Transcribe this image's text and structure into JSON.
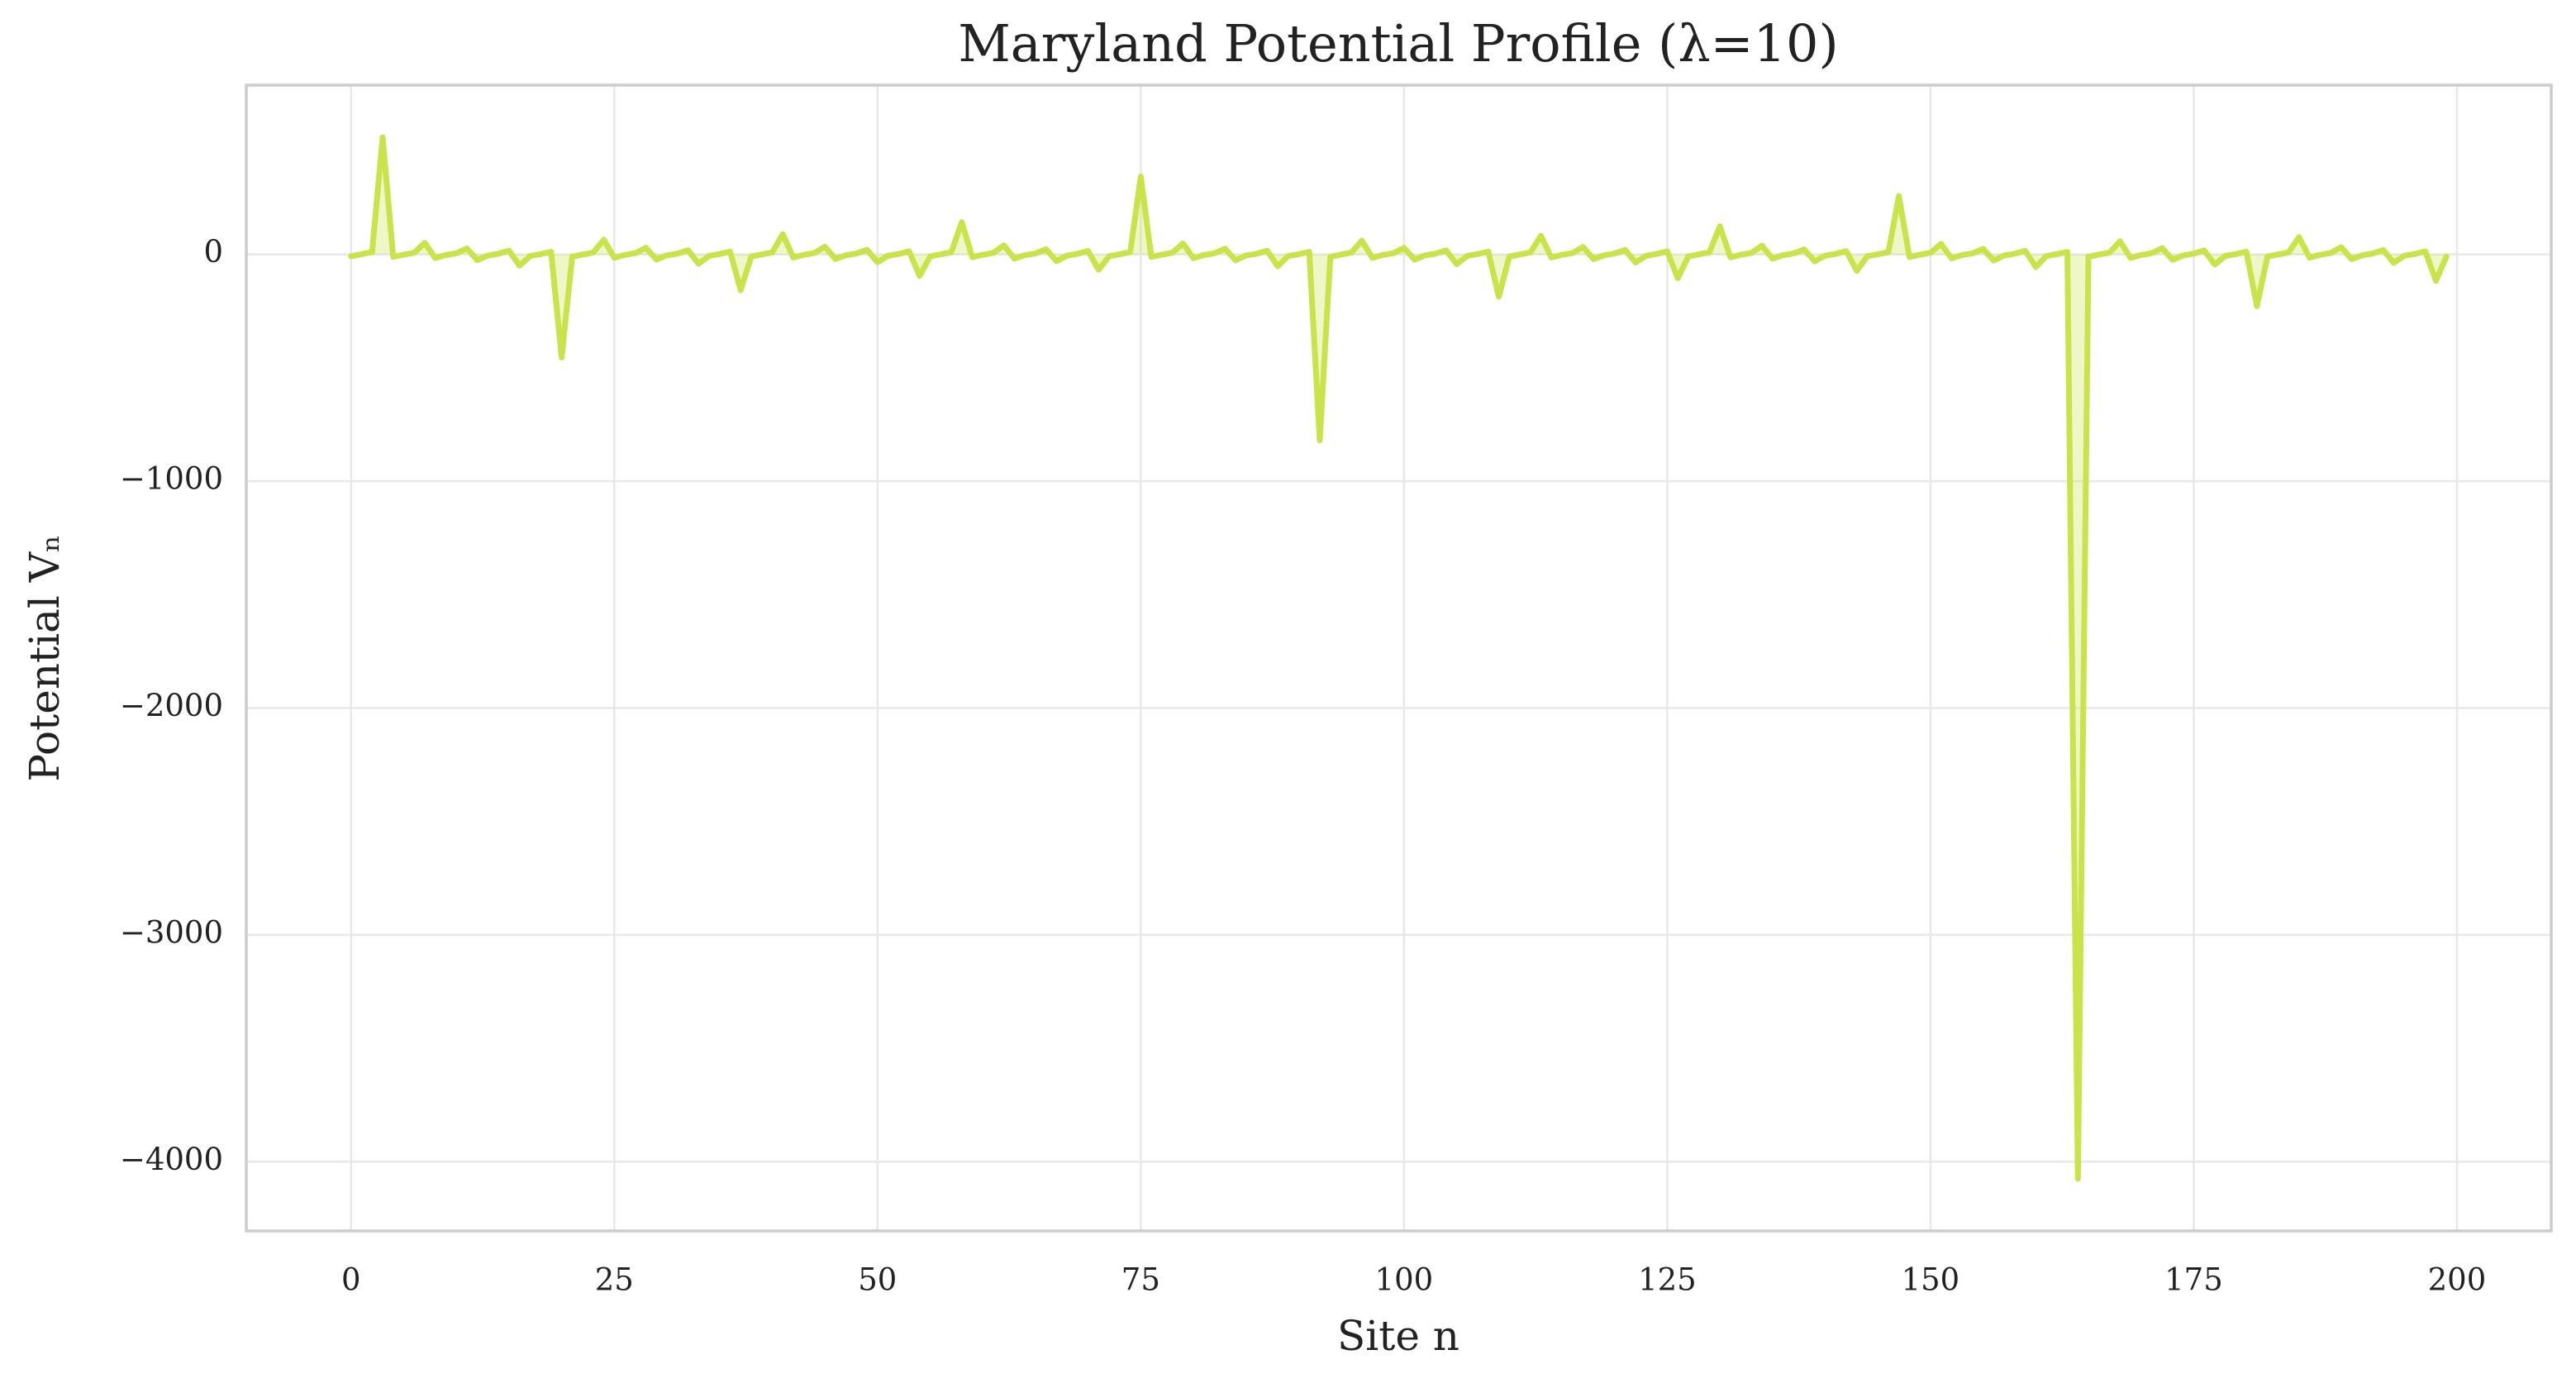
{
  "chart_data": {
    "type": "line",
    "title": "Maryland Potential Profile (λ=10)",
    "x_label": "Site n",
    "y_label": "Potential Vₙ",
    "x": [
      0,
      1,
      2,
      3,
      4,
      5,
      6,
      7,
      8,
      9,
      10,
      11,
      12,
      13,
      14,
      15,
      16,
      17,
      18,
      19,
      20,
      21,
      22,
      23,
      24,
      25,
      26,
      27,
      28,
      29,
      30,
      31,
      32,
      33,
      34,
      35,
      36,
      37,
      38,
      39,
      40,
      41,
      42,
      43,
      44,
      45,
      46,
      47,
      48,
      49,
      50,
      51,
      52,
      53,
      54,
      55,
      56,
      57,
      58,
      59,
      60,
      61,
      62,
      63,
      64,
      65,
      66,
      67,
      68,
      69,
      70,
      71,
      72,
      73,
      74,
      75,
      76,
      77,
      78,
      79,
      80,
      81,
      82,
      83,
      84,
      85,
      86,
      87,
      88,
      89,
      90,
      91,
      92,
      93,
      94,
      95,
      96,
      97,
      98,
      99,
      100,
      101,
      102,
      103,
      104,
      105,
      106,
      107,
      108,
      109,
      110,
      111,
      112,
      113,
      114,
      115,
      116,
      117,
      118,
      119,
      120,
      121,
      122,
      123,
      124,
      125,
      126,
      127,
      128,
      129,
      130,
      131,
      132,
      133,
      134,
      135,
      136,
      137,
      138,
      139,
      140,
      141,
      142,
      143,
      144,
      145,
      146,
      147,
      148,
      149,
      150,
      151,
      152,
      153,
      154,
      155,
      156,
      157,
      158,
      159,
      160,
      161,
      162,
      163,
      164,
      165,
      166,
      167,
      168,
      169,
      170,
      171,
      172,
      173,
      174,
      175,
      176,
      177,
      178,
      179,
      180,
      181,
      182,
      183,
      184,
      185,
      186,
      187,
      188,
      189,
      190,
      191,
      192,
      193,
      194,
      195,
      196,
      197,
      198,
      199
    ],
    "values": [
      -8.0,
      0.7,
      10.5,
      516,
      -11.3,
      -1.1,
      7.4,
      50.8,
      -16.4,
      -2.9,
      4.9,
      25.8,
      -25.6,
      -4.9,
      2.9,
      16.5,
      -50.1,
      -7.3,
      1.1,
      11.4,
      -455,
      -10.4,
      -0.7,
      8.0,
      64.8,
      -15.0,
      -2.5,
      5.5,
      29.4,
      -22.8,
      -4.4,
      3.4,
      18.2,
      -41.2,
      -6.7,
      1.5,
      12.4,
      -157.8,
      -9.6,
      -0.2,
      8.7,
      89.0,
      -13.7,
      -2.0,
      6.0,
      34.0,
      -20.4,
      -3.9,
      3.8,
      20.1,
      -34.8,
      -6.1,
      1.9,
      13.5,
      -95.2,
      -8.9,
      0.2,
      9.5,
      141.7,
      -12.6,
      -1.6,
      6.6,
      39.9,
      -18.5,
      -3.5,
      4.3,
      22.3,
      -30.1,
      -5.6,
      2.4,
      14.7,
      -68.0,
      -8.1,
      0.6,
      10.3,
      343,
      -11.6,
      -1.2,
      7.2,
      48.3,
      -16.8,
      -3.0,
      4.8,
      25.1,
      -26.4,
      -5.0,
      2.8,
      16.2,
      -52.8,
      -7.5,
      1.0,
      11.2,
      -820,
      -10.7,
      -0.8,
      7.9,
      60.8,
      -15.3,
      -2.6,
      5.4,
      28.5,
      -23.4,
      -4.5,
      3.3,
      17.8,
      -42.9,
      -6.9,
      1.4,
      12.2,
      -186.6,
      -9.8,
      -0.3,
      8.6,
      81.9,
      -14.0,
      -2.1,
      5.9,
      32.7,
      -21.0,
      -4.0,
      3.7,
      19.6,
      -36.1,
      -6.3,
      1.8,
      13.2,
      -105.1,
      -9.0,
      0.1,
      9.3,
      124.4,
      -12.8,
      -1.7,
      6.5,
      38.3,
      -18.9,
      -3.6,
      4.2,
      21.8,
      -31.1,
      -5.7,
      2.3,
      14.4,
      -72.9,
      -8.3,
      0.5,
      10.1,
      257,
      -11.8,
      -1.3,
      7.1,
      46.1,
      -17.1,
      -3.1,
      4.7,
      24.4,
      -27.2,
      -5.2,
      2.7,
      15.8,
      -55.7,
      -7.6,
      0.9,
      11.0,
      -4075,
      -10.9,
      -0.9,
      7.7,
      57.4,
      -15.6,
      -2.7,
      5.2,
      27.6,
      -24.0,
      -4.7,
      3.2,
      17.4,
      -45.0,
      -7.0,
      1.3,
      11.9,
      -228,
      -10.0,
      -0.4,
      8.4,
      75.8,
      -14.3,
      -2.2,
      5.8,
      31.5,
      -21.5,
      -4.2,
      3.6,
      19.1,
      -37.6,
      -6.4,
      1.7,
      13.0,
      -117,
      -9.2
    ],
    "color": "#c9e34b",
    "fill": true,
    "xlim": [
      -9.95,
      208.95
    ],
    "xticks": [
      0,
      25,
      50,
      75,
      100,
      125,
      150,
      175,
      200
    ],
    "ylim": [
      -4305,
      746
    ],
    "yticks": [
      {
        "value": -4000,
        "label": "−4000"
      },
      {
        "value": -3000,
        "label": "−3000"
      },
      {
        "value": -2000,
        "label": "−2000"
      },
      {
        "value": -1000,
        "label": "−1000"
      },
      0
    ],
    "grid": true
  }
}
